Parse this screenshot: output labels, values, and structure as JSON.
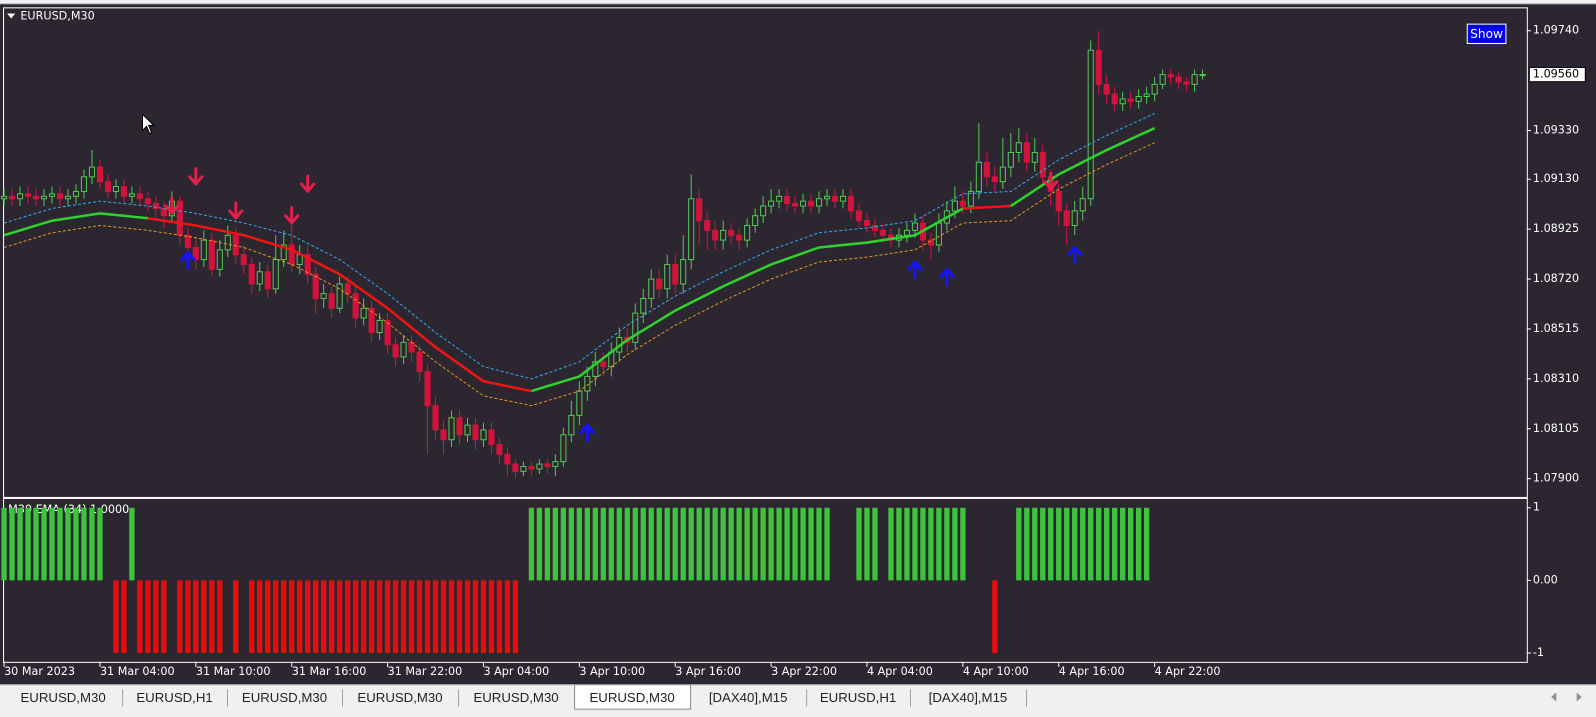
{
  "window": {
    "title": "EURUSD,M30",
    "button": "Show"
  },
  "chart_data": [
    {
      "type": "candlestick",
      "categories": [
        "30 Mar 2023",
        null,
        null,
        null,
        null,
        null,
        null,
        null,
        null,
        null,
        null,
        null,
        "31 Mar 04:00",
        null,
        null,
        null,
        null,
        null,
        null,
        null,
        null,
        null,
        null,
        null,
        "31 Mar 10:00",
        null,
        null,
        null,
        null,
        null,
        null,
        null,
        null,
        null,
        null,
        null,
        "31 Mar 16:00",
        null,
        null,
        null,
        null,
        null,
        null,
        null,
        null,
        null,
        null,
        null,
        "31 Mar 22:00",
        null,
        null,
        null,
        null,
        null,
        null,
        null,
        null,
        null,
        null,
        null,
        "3 Apr 04:00",
        null,
        null,
        null,
        null,
        null,
        null,
        null,
        null,
        null,
        null,
        null,
        "3 Apr 10:00",
        null,
        null,
        null,
        null,
        null,
        null,
        null,
        null,
        null,
        null,
        null,
        "3 Apr 16:00",
        null,
        null,
        null,
        null,
        null,
        null,
        null,
        null,
        null,
        null,
        null,
        "3 Apr 22:00",
        null,
        null,
        null,
        null,
        null,
        null,
        null,
        null,
        null,
        null,
        null,
        "4 Apr 04:00",
        null,
        null,
        null,
        null,
        null,
        null,
        null,
        null,
        null,
        null,
        null,
        "4 Apr 10:00",
        null,
        null,
        null,
        null,
        null,
        null,
        null,
        null,
        null,
        null,
        null,
        "4 Apr 16:00",
        null,
        null,
        null,
        null,
        null,
        null,
        null,
        null,
        null,
        null,
        null,
        "4 Apr 22:00",
        null,
        null,
        null,
        null,
        null,
        null
      ],
      "open": [
        1.0905,
        1.0906,
        1.0905,
        1.0907,
        1.0906,
        1.0905,
        1.0906,
        1.0907,
        1.0905,
        1.0906,
        1.0908,
        1.0914,
        1.0918,
        1.0912,
        1.0908,
        1.091,
        1.0906,
        1.0907,
        1.0905,
        1.0903,
        1.0901,
        1.0898,
        1.0904,
        1.089,
        1.0885,
        1.088,
        1.0888,
        1.0876,
        1.0884,
        1.089,
        1.0882,
        1.0878,
        1.087,
        1.0875,
        1.0868,
        1.088,
        1.0886,
        1.0878,
        1.0882,
        1.0874,
        1.0864,
        1.0866,
        1.086,
        1.087,
        1.0866,
        1.0856,
        1.086,
        1.085,
        1.0855,
        1.0845,
        1.084,
        1.0846,
        1.0842,
        1.0834,
        1.082,
        1.081,
        1.0806,
        1.0815,
        1.0808,
        1.0812,
        1.0806,
        1.081,
        1.0804,
        1.08,
        1.0796,
        1.0793,
        1.0795,
        1.0794,
        1.0796,
        1.0795,
        1.0797,
        1.0808,
        1.0816,
        1.0826,
        1.0832,
        1.0838,
        1.0836,
        1.0842,
        1.0848,
        1.0846,
        1.0858,
        1.0864,
        1.0872,
        1.0868,
        1.0878,
        1.087,
        1.088,
        1.0905,
        1.0896,
        1.0892,
        1.0888,
        1.0892,
        1.089,
        1.0888,
        1.0894,
        1.0898,
        1.0902,
        1.0904,
        1.0906,
        1.0903,
        1.0902,
        1.0904,
        1.0902,
        1.0905,
        1.0906,
        1.0904,
        1.0906,
        1.09,
        1.0896,
        1.0894,
        1.0892,
        1.089,
        1.0888,
        1.089,
        1.0892,
        1.0895,
        1.0888,
        1.0886,
        1.0895,
        1.09,
        1.0904,
        1.0902,
        1.0908,
        1.092,
        1.0914,
        1.0912,
        1.0918,
        1.0924,
        1.0928,
        1.092,
        1.0924,
        1.0914,
        1.0908,
        1.09,
        1.0894,
        1.09,
        1.0905,
        1.0966,
        1.0952,
        1.0948,
        1.0944,
        1.0946,
        1.0945,
        1.0947,
        1.0948,
        1.0952,
        1.0956,
        1.0955,
        1.0953,
        1.0952,
        1.0956
      ],
      "high": [
        1.0909,
        1.0909,
        1.091,
        1.091,
        1.0909,
        1.0909,
        1.091,
        1.091,
        1.0909,
        1.0911,
        1.0917,
        1.0925,
        1.0921,
        1.0915,
        1.0913,
        1.0913,
        1.091,
        1.091,
        1.0908,
        1.0906,
        1.0904,
        1.0908,
        1.0906,
        1.0893,
        1.0889,
        1.0892,
        1.0891,
        1.0888,
        1.0894,
        1.0893,
        1.0886,
        1.0881,
        1.0879,
        1.0878,
        1.089,
        1.0892,
        1.09,
        1.0886,
        1.0886,
        1.0877,
        1.087,
        1.0869,
        1.0873,
        1.0873,
        1.0869,
        1.0864,
        1.0863,
        1.0858,
        1.0858,
        1.0848,
        1.0849,
        1.0849,
        1.0845,
        1.0837,
        1.0824,
        1.0814,
        1.0818,
        1.0818,
        1.0815,
        1.0815,
        1.0813,
        1.0813,
        1.0807,
        1.0803,
        1.0798,
        1.0797,
        1.0797,
        1.0798,
        1.0798,
        1.08,
        1.0811,
        1.0822,
        1.083,
        1.0836,
        1.0842,
        1.0842,
        1.0846,
        1.0852,
        1.0852,
        1.0862,
        1.0868,
        1.0876,
        1.0876,
        1.0882,
        1.0882,
        1.089,
        1.0915,
        1.0909,
        1.09,
        1.0896,
        1.0896,
        1.0895,
        1.0893,
        1.0897,
        1.0901,
        1.0906,
        1.0909,
        1.0909,
        1.0909,
        1.0906,
        1.0907,
        1.0907,
        1.0908,
        1.0909,
        1.0909,
        1.0909,
        1.0909,
        1.0903,
        1.0899,
        1.0897,
        1.0895,
        1.0893,
        1.0893,
        1.0895,
        1.0899,
        1.0898,
        1.0891,
        1.0899,
        1.0904,
        1.091,
        1.0908,
        1.0912,
        1.0936,
        1.0924,
        1.0918,
        1.093,
        1.0932,
        1.0934,
        1.0932,
        1.093,
        1.0927,
        1.0917,
        1.0911,
        1.0903,
        1.0904,
        1.091,
        1.097,
        1.0974,
        1.0956,
        1.0951,
        1.0949,
        1.0949,
        1.095,
        1.0951,
        1.0955,
        1.0958,
        1.0958,
        1.0957,
        1.0955,
        1.0958,
        1.0958
      ],
      "low": [
        1.0902,
        1.0902,
        1.0902,
        1.0903,
        1.0902,
        1.0902,
        1.0903,
        1.0902,
        1.0902,
        1.0903,
        1.0905,
        1.0911,
        1.0909,
        1.0905,
        1.0905,
        1.0903,
        1.0903,
        1.0902,
        1.09,
        1.0897,
        1.0893,
        1.0895,
        1.0886,
        1.0878,
        1.0876,
        1.0877,
        1.0873,
        1.0873,
        1.0881,
        1.0878,
        1.0874,
        1.0866,
        1.0867,
        1.0864,
        1.0866,
        1.0877,
        1.0875,
        1.0874,
        1.087,
        1.0858,
        1.086,
        1.0856,
        1.0858,
        1.0862,
        1.0852,
        1.0853,
        1.0846,
        1.0847,
        1.0841,
        1.0836,
        1.0837,
        1.0838,
        1.083,
        1.08,
        1.0806,
        1.08,
        1.0803,
        1.0804,
        1.0805,
        1.0802,
        1.0803,
        1.08,
        1.0796,
        1.0791,
        1.079,
        1.0791,
        1.0791,
        1.0792,
        1.0792,
        1.0791,
        1.0795,
        1.0805,
        1.0812,
        1.0822,
        1.0828,
        1.0832,
        1.0832,
        1.0838,
        1.0842,
        1.0843,
        1.0854,
        1.086,
        1.0864,
        1.0864,
        1.0866,
        1.0866,
        1.0876,
        1.0886,
        1.0884,
        1.0884,
        1.0884,
        1.0886,
        1.0884,
        1.0885,
        1.0891,
        1.0895,
        1.0899,
        1.0901,
        1.09,
        1.0899,
        1.0899,
        1.0899,
        1.0899,
        1.0902,
        1.0901,
        1.0901,
        1.0897,
        1.0893,
        1.0891,
        1.0889,
        1.0887,
        1.0885,
        1.0885,
        1.0887,
        1.0889,
        1.0884,
        1.088,
        1.0883,
        1.0892,
        1.0897,
        1.0899,
        1.0899,
        1.0905,
        1.091,
        1.0908,
        1.0909,
        1.0914,
        1.092,
        1.0916,
        1.0916,
        1.091,
        1.0902,
        1.0894,
        1.0886,
        1.089,
        1.0896,
        1.0902,
        1.0948,
        1.0944,
        1.0941,
        1.0941,
        1.0942,
        1.0942,
        1.0944,
        1.0945,
        1.095,
        1.0952,
        1.095,
        1.0949,
        1.0949,
        1.0954
      ],
      "close": [
        1.0906,
        1.0905,
        1.0907,
        1.0906,
        1.0905,
        1.0906,
        1.0907,
        1.0905,
        1.0906,
        1.0908,
        1.0914,
        1.0918,
        1.0912,
        1.0908,
        1.091,
        1.0906,
        1.0907,
        1.0905,
        1.0903,
        1.0901,
        1.0898,
        1.0904,
        1.089,
        1.0885,
        1.088,
        1.0888,
        1.0876,
        1.0884,
        1.089,
        1.0882,
        1.0878,
        1.087,
        1.0875,
        1.0868,
        1.088,
        1.0886,
        1.0878,
        1.0882,
        1.0874,
        1.0864,
        1.0866,
        1.086,
        1.087,
        1.0866,
        1.0856,
        1.086,
        1.085,
        1.0855,
        1.0845,
        1.084,
        1.0846,
        1.0842,
        1.0834,
        1.082,
        1.081,
        1.0806,
        1.0815,
        1.0808,
        1.0812,
        1.0806,
        1.081,
        1.0804,
        1.08,
        1.0796,
        1.0793,
        1.0795,
        1.0794,
        1.0796,
        1.0795,
        1.0797,
        1.0808,
        1.0816,
        1.0826,
        1.0832,
        1.0838,
        1.0836,
        1.0842,
        1.0848,
        1.0846,
        1.0858,
        1.0864,
        1.0872,
        1.0868,
        1.0878,
        1.087,
        1.088,
        1.0905,
        1.0896,
        1.0892,
        1.0888,
        1.0892,
        1.089,
        1.0888,
        1.0894,
        1.0898,
        1.0902,
        1.0904,
        1.0906,
        1.0903,
        1.0902,
        1.0904,
        1.0902,
        1.0905,
        1.0906,
        1.0904,
        1.0906,
        1.09,
        1.0896,
        1.0894,
        1.0892,
        1.089,
        1.0888,
        1.089,
        1.0892,
        1.0895,
        1.0888,
        1.0886,
        1.0895,
        1.09,
        1.0904,
        1.0902,
        1.0908,
        1.092,
        1.0914,
        1.0912,
        1.0918,
        1.0924,
        1.0928,
        1.092,
        1.0924,
        1.0914,
        1.0908,
        1.09,
        1.0894,
        1.09,
        1.0905,
        1.0966,
        1.0952,
        1.0948,
        1.0944,
        1.0946,
        1.0945,
        1.0947,
        1.0948,
        1.0952,
        1.0956,
        1.0955,
        1.0953,
        1.0952,
        1.0956,
        1.0956
      ],
      "up_color": "#52c852",
      "down_color": "#d2143c",
      "ylim": [
        1.07825,
        1.09832
      ],
      "yticks": [
        {
          "value": 1.0974,
          "label": "1.09740"
        },
        {
          "value": 1.0933,
          "label": "1.09330"
        },
        {
          "value": 1.0913,
          "label": "1.09130"
        },
        {
          "value": 1.08925,
          "label": "1.08925"
        },
        {
          "value": 1.0872,
          "label": "1.08720"
        },
        {
          "value": 1.08515,
          "label": "1.08515"
        },
        {
          "value": 1.0831,
          "label": "1.08310"
        },
        {
          "value": 1.08105,
          "label": "1.08105"
        },
        {
          "value": 1.079,
          "label": "1.07900"
        }
      ],
      "current_price": {
        "value": 1.0956,
        "label": "1.09560"
      },
      "lines": [
        {
          "color": "#33a9e6",
          "dash": true,
          "x": [
            0,
            6,
            12,
            18,
            24,
            30,
            36,
            42,
            48,
            54,
            60,
            66,
            72,
            78,
            84,
            90,
            96,
            102,
            108,
            114,
            120,
            126,
            132,
            138,
            144
          ],
          "values": [
            1.0895,
            1.0901,
            1.0904,
            1.0902,
            1.0899,
            1.0895,
            1.089,
            1.088,
            1.0866,
            1.085,
            1.0836,
            1.0831,
            1.0838,
            1.0853,
            1.0865,
            1.0875,
            1.0884,
            1.0891,
            1.0893,
            1.0896,
            1.0907,
            1.0908,
            1.0921,
            1.0931,
            1.094
          ]
        },
        {
          "color": "#e0961e",
          "dash": true,
          "x": [
            0,
            6,
            12,
            18,
            24,
            30,
            36,
            42,
            48,
            54,
            60,
            66,
            72,
            78,
            84,
            90,
            96,
            102,
            108,
            114,
            120,
            126,
            132,
            138,
            144
          ],
          "values": [
            1.0885,
            1.0891,
            1.0894,
            1.0892,
            1.0889,
            1.0885,
            1.0878,
            1.0868,
            1.0854,
            1.0838,
            1.0824,
            1.082,
            1.0826,
            1.0841,
            1.0853,
            1.0863,
            1.0872,
            1.0879,
            1.0881,
            1.0884,
            1.0895,
            1.0896,
            1.0909,
            1.0919,
            1.0928
          ]
        },
        {
          "x": [
            0,
            6,
            12,
            18,
            24,
            30,
            36,
            42,
            48,
            54,
            60,
            66,
            72,
            78,
            84,
            90,
            96,
            102,
            108,
            114,
            120,
            126,
            132,
            138,
            144
          ],
          "values": [
            1.089,
            1.0896,
            1.0899,
            1.0897,
            1.0894,
            1.089,
            1.0884,
            1.0874,
            1.086,
            1.0844,
            1.083,
            1.0826,
            1.0832,
            1.0847,
            1.0859,
            1.0869,
            1.0878,
            1.0885,
            1.0887,
            1.089,
            1.0901,
            1.0902,
            1.0915,
            1.0925,
            1.0934
          ],
          "segment_colors": [
            "#2ed12e",
            "#2ed12e",
            "#2ed12e",
            "#f01414",
            "#f01414",
            "#f01414",
            "#f01414",
            "#f01414",
            "#f01414",
            "#f01414",
            "#f01414",
            "#2ed12e",
            "#2ed12e",
            "#2ed12e",
            "#2ed12e",
            "#2ed12e",
            "#2ed12e",
            "#2ed12e",
            "#2ed12e",
            "#2ed12e",
            "#f01414",
            "#2ed12e",
            "#2ed12e",
            "#2ed12e"
          ]
        }
      ],
      "signals": [
        {
          "direction": "down",
          "color": "#e0204a",
          "x": [
            21,
            24,
            29,
            36,
            38,
            131
          ],
          "values": [
            1.0902,
            1.0914,
            1.09,
            1.0898,
            1.0911,
            1.0912
          ]
        },
        {
          "direction": "up",
          "color": "#1414ff",
          "x": [
            23,
            73,
            114,
            118,
            134
          ],
          "values": [
            1.088,
            1.0809,
            1.0876,
            1.0873,
            1.0882
          ]
        }
      ]
    },
    {
      "type": "bar",
      "label": "M30 EMA (34) 1.0000",
      "values": [
        1,
        1,
        1,
        1,
        1,
        1,
        1,
        1,
        1,
        1,
        1,
        1,
        1,
        0,
        -1,
        -1,
        1,
        -1,
        -1,
        -1,
        -1,
        0,
        -1,
        -1,
        -1,
        -1,
        -1,
        -1,
        0,
        -1,
        0,
        -1,
        -1,
        -1,
        -1,
        -1,
        -1,
        -1,
        -1,
        -1,
        -1,
        -1,
        -1,
        -1,
        -1,
        -1,
        -1,
        -1,
        -1,
        -1,
        -1,
        -1,
        -1,
        -1,
        -1,
        -1,
        -1,
        -1,
        -1,
        -1,
        -1,
        -1,
        -1,
        -1,
        -1,
        0,
        1,
        1,
        1,
        1,
        1,
        1,
        1,
        1,
        1,
        1,
        1,
        1,
        1,
        1,
        1,
        1,
        1,
        1,
        1,
        1,
        1,
        1,
        1,
        1,
        1,
        1,
        1,
        1,
        1,
        1,
        1,
        1,
        1,
        1,
        1,
        1,
        1,
        1,
        0,
        0,
        0,
        1,
        1,
        1,
        0,
        1,
        1,
        1,
        1,
        1,
        1,
        1,
        1,
        1,
        1,
        0,
        0,
        0,
        -1,
        0,
        0,
        1,
        1,
        1,
        1,
        1,
        1,
        1,
        1,
        1,
        1,
        1,
        1,
        1,
        1,
        1,
        1,
        1,
        null,
        null,
        null,
        null,
        null,
        null,
        null
      ],
      "positive_color": "#3cc43c",
      "negative_color": "#e80d0d",
      "ylim": [
        -1.1,
        1.1
      ],
      "yticks": [
        1,
        {
          "value": 0,
          "label": "0.00"
        },
        -1
      ]
    }
  ],
  "tabs": [
    {
      "label": "EURUSD,M30"
    },
    {
      "label": "EURUSD,H1"
    },
    {
      "label": "EURUSD,M30"
    },
    {
      "label": "EURUSD,M30"
    },
    {
      "label": "EURUSD,M30"
    },
    {
      "label": "EURUSD,M30",
      "active": true
    },
    {
      "label": "[DAX40],M15"
    },
    {
      "label": "EURUSD,H1"
    },
    {
      "label": "[DAX40],M15"
    }
  ]
}
